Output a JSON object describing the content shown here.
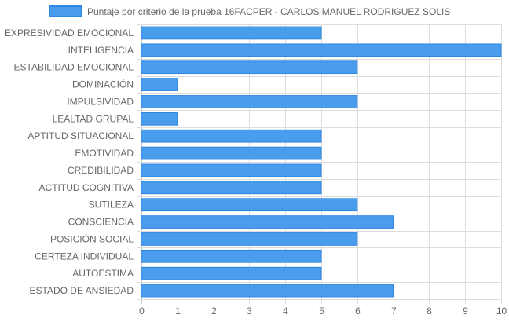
{
  "chart_data": {
    "type": "bar",
    "orientation": "horizontal",
    "title": "",
    "xlabel": "",
    "ylabel": "",
    "xlim": [
      0,
      10
    ],
    "x_ticks": [
      "0",
      "1",
      "2",
      "3",
      "4",
      "5",
      "6",
      "7",
      "8",
      "9",
      "10"
    ],
    "grid": true,
    "legend_position": "top-center",
    "categories": [
      "EXPRESIVIDAD EMOCIONAL",
      "INTELIGENCIA",
      "ESTABILIDAD EMOCIONAL",
      "DOMINACIÓN",
      "IMPULSIVIDAD",
      "LEALTAD GRUPAL",
      "APTITUD SITUACIONAL",
      "EMOTIVIDAD",
      "CREDIBILIDAD",
      "ACTITUD COGNITIVA",
      "SUTILEZA",
      "CONSCIENCIA",
      "POSICIÓN SOCIAL",
      "CERTEZA INDIVIDUAL",
      "AUTOESTIMA",
      "ESTADO DE ANSIEDAD"
    ],
    "series": [
      {
        "name": "Puntaje por criterio de la prueba 16FACPER - CARLOS MANUEL RODRIGUEZ SOLIS",
        "values": [
          5,
          10,
          6,
          1,
          6,
          1,
          5,
          5,
          5,
          5,
          6,
          7,
          6,
          5,
          5,
          7
        ],
        "color": "#4a9ded",
        "border_color": "#2f86e0"
      }
    ],
    "grid_color": "#dddddd",
    "axis_color": "#c8c8c8"
  }
}
